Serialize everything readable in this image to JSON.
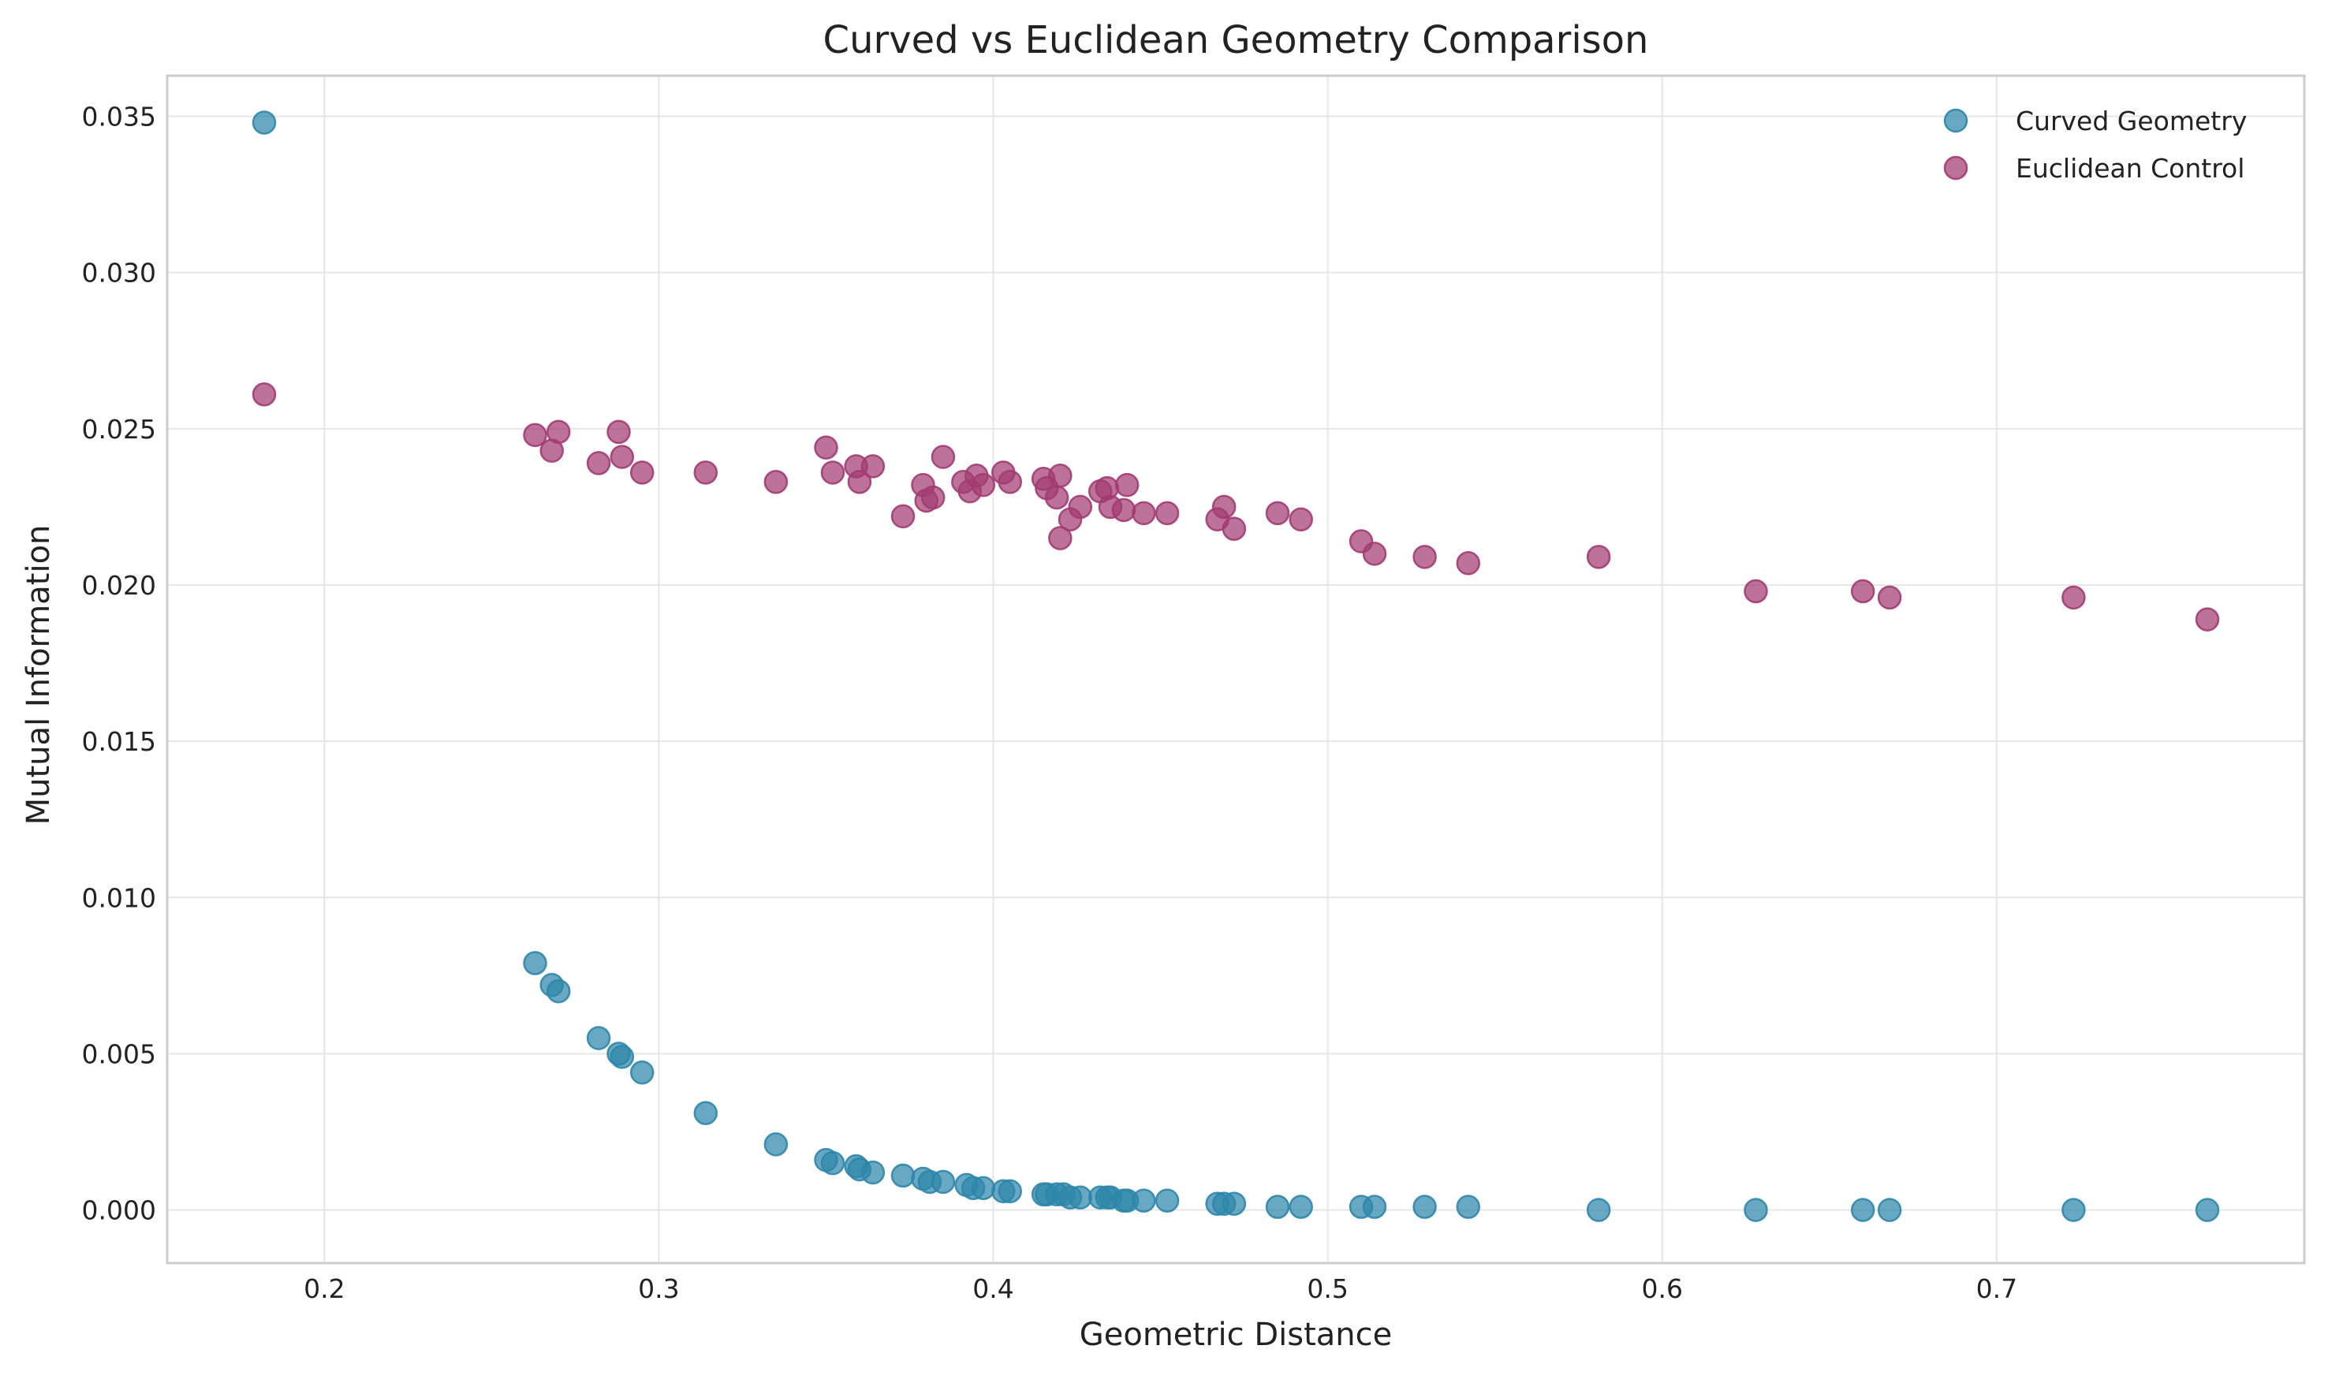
{
  "chart_data": {
    "type": "scatter",
    "title": "Curved vs Euclidean Geometry Comparison",
    "xlabel": "Geometric Distance",
    "ylabel": "Mutual Information",
    "xlim": [
      0.153,
      0.792
    ],
    "ylim": [
      -0.0017,
      0.0363
    ],
    "x_ticks": [
      0.2,
      0.3,
      0.4,
      0.5,
      0.6,
      0.7
    ],
    "x_tick_labels": [
      "0.2",
      "0.3",
      "0.4",
      "0.5",
      "0.6",
      "0.7"
    ],
    "y_ticks": [
      0.0,
      0.005,
      0.01,
      0.015,
      0.02,
      0.025,
      0.03,
      0.035
    ],
    "y_tick_labels": [
      "0.000",
      "0.005",
      "0.010",
      "0.015",
      "0.020",
      "0.025",
      "0.030",
      "0.035"
    ],
    "grid": true,
    "legend_position": "top-right",
    "series": [
      {
        "name": "Curved Geometry",
        "color": "#2e86ab",
        "points": [
          [
            0.182,
            0.0348
          ],
          [
            0.263,
            0.0079
          ],
          [
            0.268,
            0.0072
          ],
          [
            0.27,
            0.007
          ],
          [
            0.282,
            0.0055
          ],
          [
            0.288,
            0.005
          ],
          [
            0.289,
            0.0049
          ],
          [
            0.295,
            0.0044
          ],
          [
            0.314,
            0.0031
          ],
          [
            0.335,
            0.0021
          ],
          [
            0.35,
            0.0016
          ],
          [
            0.352,
            0.0015
          ],
          [
            0.359,
            0.0014
          ],
          [
            0.36,
            0.0013
          ],
          [
            0.364,
            0.0012
          ],
          [
            0.373,
            0.0011
          ],
          [
            0.379,
            0.001
          ],
          [
            0.381,
            0.0009
          ],
          [
            0.385,
            0.0009
          ],
          [
            0.392,
            0.0008
          ],
          [
            0.394,
            0.0007
          ],
          [
            0.397,
            0.0007
          ],
          [
            0.403,
            0.0006
          ],
          [
            0.405,
            0.0006
          ],
          [
            0.415,
            0.0005
          ],
          [
            0.416,
            0.0005
          ],
          [
            0.419,
            0.0005
          ],
          [
            0.421,
            0.0005
          ],
          [
            0.423,
            0.0004
          ],
          [
            0.426,
            0.0004
          ],
          [
            0.432,
            0.0004
          ],
          [
            0.434,
            0.0004
          ],
          [
            0.435,
            0.0004
          ],
          [
            0.439,
            0.0003
          ],
          [
            0.44,
            0.0003
          ],
          [
            0.445,
            0.0003
          ],
          [
            0.452,
            0.0003
          ],
          [
            0.467,
            0.0002
          ],
          [
            0.469,
            0.0002
          ],
          [
            0.472,
            0.0002
          ],
          [
            0.485,
            0.0001
          ],
          [
            0.492,
            0.0001
          ],
          [
            0.51,
            0.0001
          ],
          [
            0.514,
            0.0001
          ],
          [
            0.529,
            0.0001
          ],
          [
            0.542,
            0.0001
          ],
          [
            0.581,
            0.0
          ],
          [
            0.628,
            0.0
          ],
          [
            0.66,
            0.0
          ],
          [
            0.668,
            0.0
          ],
          [
            0.723,
            0.0
          ],
          [
            0.763,
            0.0
          ]
        ]
      },
      {
        "name": "Euclidean Control",
        "color": "#a23b72",
        "points": [
          [
            0.182,
            0.0261
          ],
          [
            0.263,
            0.0248
          ],
          [
            0.268,
            0.0243
          ],
          [
            0.27,
            0.0249
          ],
          [
            0.282,
            0.0239
          ],
          [
            0.288,
            0.0249
          ],
          [
            0.289,
            0.0241
          ],
          [
            0.295,
            0.0236
          ],
          [
            0.314,
            0.0236
          ],
          [
            0.335,
            0.0233
          ],
          [
            0.35,
            0.0244
          ],
          [
            0.352,
            0.0236
          ],
          [
            0.359,
            0.0238
          ],
          [
            0.36,
            0.0233
          ],
          [
            0.364,
            0.0238
          ],
          [
            0.373,
            0.0222
          ],
          [
            0.379,
            0.0232
          ],
          [
            0.38,
            0.0227
          ],
          [
            0.382,
            0.0228
          ],
          [
            0.385,
            0.0241
          ],
          [
            0.391,
            0.0233
          ],
          [
            0.393,
            0.023
          ],
          [
            0.395,
            0.0235
          ],
          [
            0.397,
            0.0232
          ],
          [
            0.403,
            0.0236
          ],
          [
            0.405,
            0.0233
          ],
          [
            0.415,
            0.0234
          ],
          [
            0.416,
            0.0231
          ],
          [
            0.419,
            0.0228
          ],
          [
            0.42,
            0.0235
          ],
          [
            0.42,
            0.0215
          ],
          [
            0.423,
            0.0221
          ],
          [
            0.426,
            0.0225
          ],
          [
            0.432,
            0.023
          ],
          [
            0.434,
            0.0231
          ],
          [
            0.435,
            0.0225
          ],
          [
            0.439,
            0.0224
          ],
          [
            0.44,
            0.0232
          ],
          [
            0.445,
            0.0223
          ],
          [
            0.452,
            0.0223
          ],
          [
            0.467,
            0.0221
          ],
          [
            0.469,
            0.0225
          ],
          [
            0.472,
            0.0218
          ],
          [
            0.485,
            0.0223
          ],
          [
            0.492,
            0.0221
          ],
          [
            0.51,
            0.0214
          ],
          [
            0.514,
            0.021
          ],
          [
            0.529,
            0.0209
          ],
          [
            0.542,
            0.0207
          ],
          [
            0.581,
            0.0209
          ],
          [
            0.628,
            0.0198
          ],
          [
            0.66,
            0.0198
          ],
          [
            0.668,
            0.0196
          ],
          [
            0.723,
            0.0196
          ],
          [
            0.763,
            0.0189
          ]
        ]
      }
    ]
  }
}
